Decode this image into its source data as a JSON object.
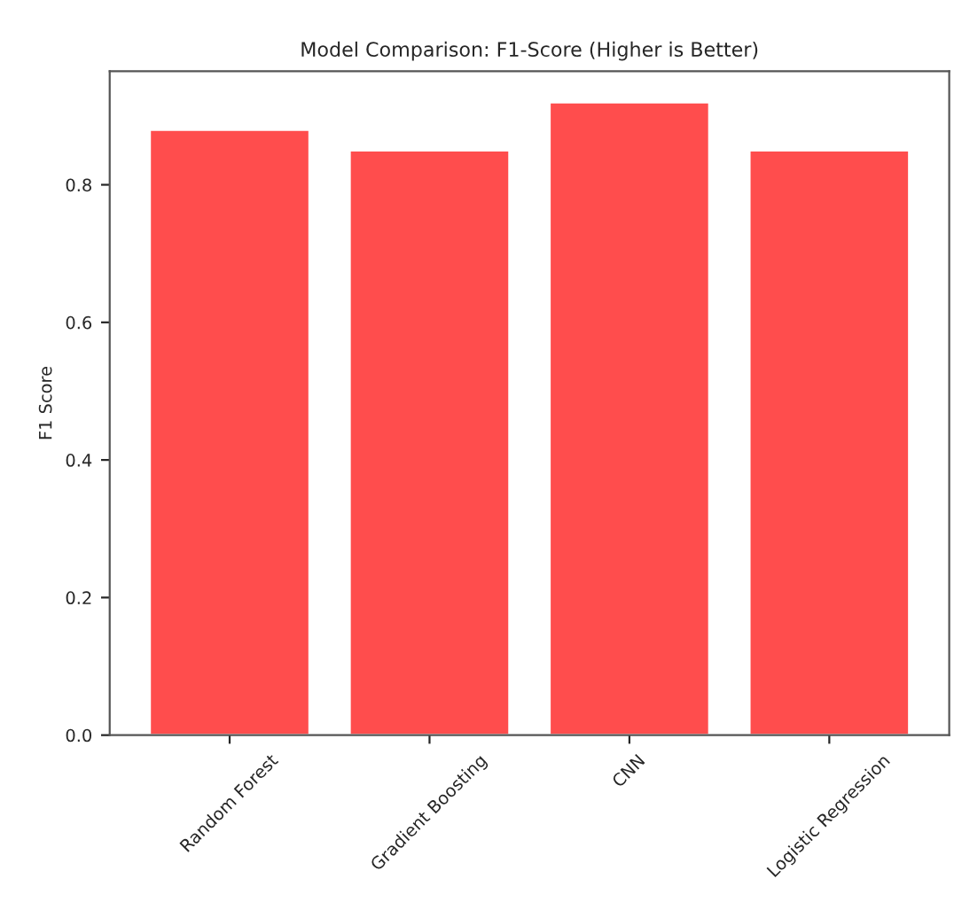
{
  "chart_data": {
    "type": "bar",
    "title": "Model Comparison: F1-Score (Higher is Better)",
    "ylabel": "F1 Score",
    "categories": [
      "Random Forest",
      "Gradient Boosting",
      "CNN",
      "Logistic Regression"
    ],
    "values": [
      0.88,
      0.85,
      0.92,
      0.85
    ],
    "color": "#ff4d4d",
    "ylim": [
      0,
      0.965
    ],
    "yticks": [
      {
        "value": 0,
        "label": "0.0"
      },
      0.2,
      0.4,
      0.6,
      0.8
    ],
    "grid": false
  }
}
